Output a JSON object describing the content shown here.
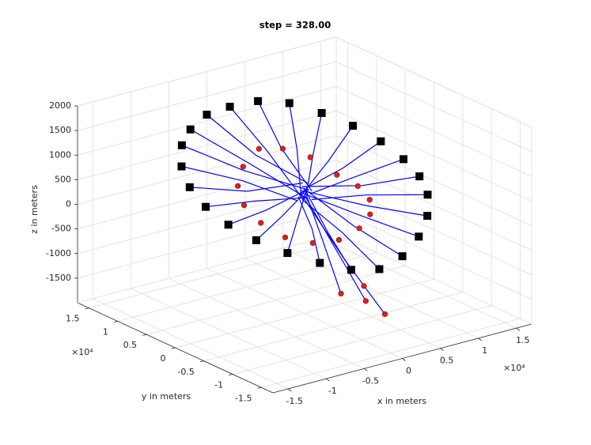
{
  "chart_data": {
    "type": "scatter3d",
    "title": "step = 328.00",
    "xlabel": "x in meters",
    "ylabel": "y in meters",
    "zlabel": "z in meters",
    "x_multiplier": "×10⁴",
    "y_multiplier": "×10⁴",
    "xlim": [
      -17000,
      17000
    ],
    "ylim": [
      -17000,
      17000
    ],
    "zlim": [
      -2000,
      2000
    ],
    "xticks": [
      {
        "value": -15000,
        "label": "-1.5"
      },
      {
        "value": -10000,
        "label": "-1"
      },
      {
        "value": -5000,
        "label": "-0.5"
      },
      0,
      {
        "value": 5000,
        "label": "0.5"
      },
      {
        "value": 10000,
        "label": "1"
      },
      {
        "value": 15000,
        "label": "1.5"
      }
    ],
    "yticks": [
      {
        "value": -15000,
        "label": "-1.5"
      },
      {
        "value": -10000,
        "label": "-1"
      },
      {
        "value": -5000,
        "label": "-0.5"
      },
      0,
      {
        "value": 5000,
        "label": "0.5"
      },
      {
        "value": 10000,
        "label": "1"
      },
      {
        "value": 15000,
        "label": "1.5"
      }
    ],
    "zticks": [
      -1500,
      -1000,
      -500,
      0,
      500,
      1000,
      1500,
      2000
    ],
    "grid": true,
    "trajectories": {
      "color": "#0000ff",
      "paths": [
        {
          "x": [
            13000,
            6500,
            800
          ],
          "y": [
            0,
            0,
            0
          ],
          "z": [
            600,
            500,
            400
          ]
        },
        {
          "x": [
            12560,
            6280,
            600
          ],
          "y": [
            3360,
            1680,
            500
          ],
          "z": [
            800,
            600,
            500
          ]
        },
        {
          "x": [
            11260,
            5630,
            -400
          ],
          "y": [
            6500,
            3250,
            600
          ],
          "z": [
            1000,
            700,
            300
          ]
        },
        {
          "x": [
            9190,
            4600,
            200
          ],
          "y": [
            9190,
            4600,
            -300
          ],
          "z": [
            1200,
            800,
            600
          ]
        },
        {
          "x": [
            6500,
            3250,
            -600
          ],
          "y": [
            11260,
            5630,
            -200
          ],
          "z": [
            1400,
            900,
            400
          ]
        },
        {
          "x": [
            3360,
            1680,
            500
          ],
          "y": [
            12560,
            6280,
            -600
          ],
          "z": [
            1500,
            950,
            500
          ]
        },
        {
          "x": [
            0,
            0,
            0
          ],
          "y": [
            13000,
            6500,
            200
          ],
          "z": [
            1500,
            950,
            300
          ]
        },
        {
          "x": [
            -3360,
            -1680,
            700
          ],
          "y": [
            12560,
            6280,
            400
          ],
          "z": [
            1500,
            950,
            600
          ]
        },
        {
          "x": [
            -6500,
            -3250,
            -300
          ],
          "y": [
            11260,
            5630,
            -500
          ],
          "z": [
            1400,
            900,
            400
          ]
        },
        {
          "x": [
            -9190,
            -4600,
            400
          ],
          "y": [
            9190,
            4600,
            -200
          ],
          "z": [
            1300,
            850,
            500
          ]
        },
        {
          "x": [
            -11260,
            -5630,
            -700
          ],
          "y": [
            6500,
            3250,
            300
          ],
          "z": [
            1100,
            750,
            300
          ]
        },
        {
          "x": [
            -12560,
            -6280,
            300
          ],
          "y": [
            3360,
            1680,
            700
          ],
          "z": [
            900,
            650,
            600
          ]
        },
        {
          "x": [
            -13000,
            -6500,
            -200
          ],
          "y": [
            0,
            0,
            -700
          ],
          "z": [
            700,
            550,
            400
          ]
        },
        {
          "x": [
            -12560,
            -6280,
            600
          ],
          "y": [
            -3360,
            -1680,
            100
          ],
          "z": [
            500,
            450,
            500
          ]
        },
        {
          "x": [
            -11260,
            -5630,
            -500
          ],
          "y": [
            -6500,
            -3250,
            500
          ],
          "z": [
            300,
            350,
            300
          ]
        },
        {
          "x": [
            -9190,
            -4600,
            100
          ],
          "y": [
            -9190,
            -4600,
            -400
          ],
          "z": [
            100,
            250,
            600
          ]
        },
        {
          "x": [
            -6500,
            -3250,
            -800
          ],
          "y": [
            -11260,
            -5630,
            0
          ],
          "z": [
            -100,
            150,
            400
          ]
        },
        {
          "x": [
            -3360,
            -1680,
            400
          ],
          "y": [
            -12560,
            -6280,
            600
          ],
          "z": [
            -300,
            50,
            500
          ]
        },
        {
          "x": [
            0,
            0,
            -100
          ],
          "y": [
            -13000,
            -6500,
            300
          ],
          "z": [
            -400,
            0,
            300
          ]
        },
        {
          "x": [
            3360,
            1680,
            -600
          ],
          "y": [
            -12560,
            -6280,
            -600
          ],
          "z": [
            -300,
            50,
            600
          ]
        },
        {
          "x": [
            6500,
            3250,
            200
          ],
          "y": [
            -11260,
            -5630,
            800
          ],
          "z": [
            -100,
            150,
            400
          ]
        },
        {
          "x": [
            9190,
            4600,
            -300
          ],
          "y": [
            -9190,
            -4600,
            200
          ],
          "z": [
            100,
            250,
            500
          ]
        },
        {
          "x": [
            11260,
            5630,
            700
          ],
          "y": [
            -6500,
            -3250,
            -300
          ],
          "z": [
            300,
            350,
            300
          ]
        },
        {
          "x": [
            12560,
            6280,
            -400
          ],
          "y": [
            -3360,
            -1680,
            -100
          ],
          "z": [
            450,
            430,
            600
          ]
        },
        {
          "x": [
            0,
            1000,
            2000
          ],
          "y": [
            0,
            -4000,
            -8000
          ],
          "z": [
            400,
            -500,
            -1400
          ]
        },
        {
          "x": [
            200,
            -300,
            -500
          ],
          "y": [
            300,
            -3500,
            -7000
          ],
          "z": [
            500,
            -300,
            -1200
          ]
        },
        {
          "x": [
            -300,
            1500,
            3000
          ],
          "y": [
            0,
            -5000,
            -10000
          ],
          "z": [
            400,
            -700,
            -1600
          ]
        }
      ]
    },
    "targets": {
      "color": "#000000",
      "x": [
        13000,
        12560,
        11260,
        9190,
        6500,
        3360,
        0,
        -3360,
        -6500,
        -9190,
        -11260,
        -12560,
        -13000,
        -12560,
        -11260,
        -9190,
        -6500,
        -3360,
        0,
        3360,
        6500,
        9190,
        11260,
        12560
      ],
      "y": [
        0,
        3360,
        6500,
        9190,
        11260,
        12560,
        13000,
        12560,
        11260,
        9190,
        6500,
        3360,
        0,
        -3360,
        -6500,
        -9190,
        -11260,
        -12560,
        -13000,
        -12560,
        -11260,
        -9190,
        -6500,
        -3360
      ],
      "z": [
        600,
        800,
        1000,
        1200,
        1400,
        1500,
        1500,
        1500,
        1400,
        1300,
        1100,
        900,
        700,
        500,
        300,
        100,
        -100,
        -300,
        -400,
        -300,
        -100,
        100,
        300,
        450
      ]
    },
    "agents": {
      "color": "#e0201b",
      "x": [
        7000,
        6400,
        4680,
        2160,
        -740,
        -3500,
        -5660,
        -6850,
        -6850,
        -5660,
        -3500,
        -740,
        2160,
        4680,
        6400,
        2000,
        -500,
        3000,
        1000
      ],
      "y": [
        0,
        2850,
        5200,
        6660,
        6960,
        6060,
        4120,
        1460,
        -1460,
        -4120,
        -6060,
        -6960,
        -6660,
        -5200,
        -2850,
        -8000,
        -7000,
        -10000,
        -9000
      ],
      "z": [
        300,
        400,
        700,
        900,
        1000,
        800,
        600,
        400,
        200,
        0,
        -100,
        -100,
        0,
        100,
        200,
        -1400,
        -1200,
        -1600,
        -1000
      ]
    }
  }
}
